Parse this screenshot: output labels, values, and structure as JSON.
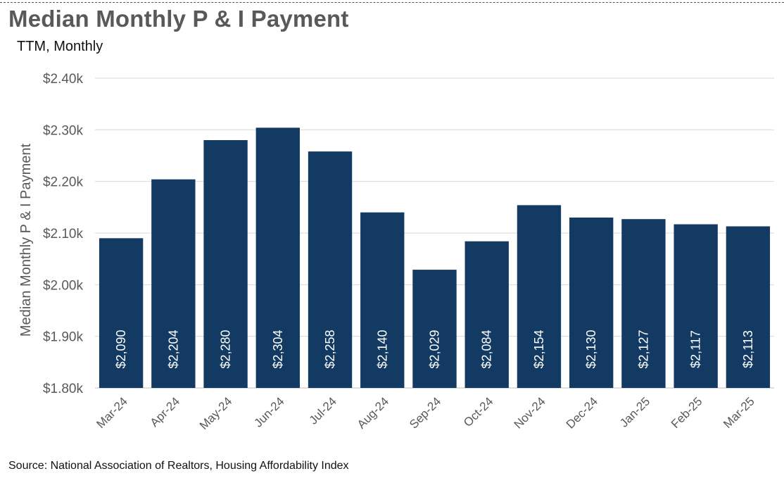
{
  "header": {
    "title": "Median Monthly P & I Payment",
    "subtitle": "TTM, Monthly"
  },
  "footer": {
    "source": "Source: National Association of Realtors, Housing Affordability Index"
  },
  "colors": {
    "bar": "#133a63",
    "grid": "#d9d9d9",
    "axis_text": "#595959"
  },
  "chart_data": {
    "type": "bar",
    "categories": [
      "Mar-24",
      "Apr-24",
      "May-24",
      "Jun-24",
      "Jul-24",
      "Aug-24",
      "Sep-24",
      "Oct-24",
      "Nov-24",
      "Dec-24",
      "Jan-25",
      "Feb-25",
      "Mar-25"
    ],
    "values": [
      2090,
      2204,
      2280,
      2304,
      2258,
      2140,
      2029,
      2084,
      2154,
      2130,
      2127,
      2117,
      2113
    ],
    "data_labels": [
      "$2,090",
      "$2,204",
      "$2,280",
      "$2,304",
      "$2,258",
      "$2,140",
      "$2,029",
      "$2,084",
      "$2,154",
      "$2,130",
      "$2,127",
      "$2,117",
      "$2,113"
    ],
    "title": "Median Monthly P & I Payment",
    "subtitle": "TTM, Monthly",
    "xlabel": "",
    "ylabel": "Median Monthly P & I Payment",
    "ylim": [
      1800,
      2400
    ],
    "yticks": [
      1800,
      1900,
      2000,
      2100,
      2200,
      2300,
      2400
    ],
    "ytick_labels": [
      "$1.80k",
      "$1.90k",
      "$2.00k",
      "$2.10k",
      "$2.20k",
      "$2.30k",
      "$2.40k"
    ],
    "grid": true,
    "legend": "none"
  }
}
